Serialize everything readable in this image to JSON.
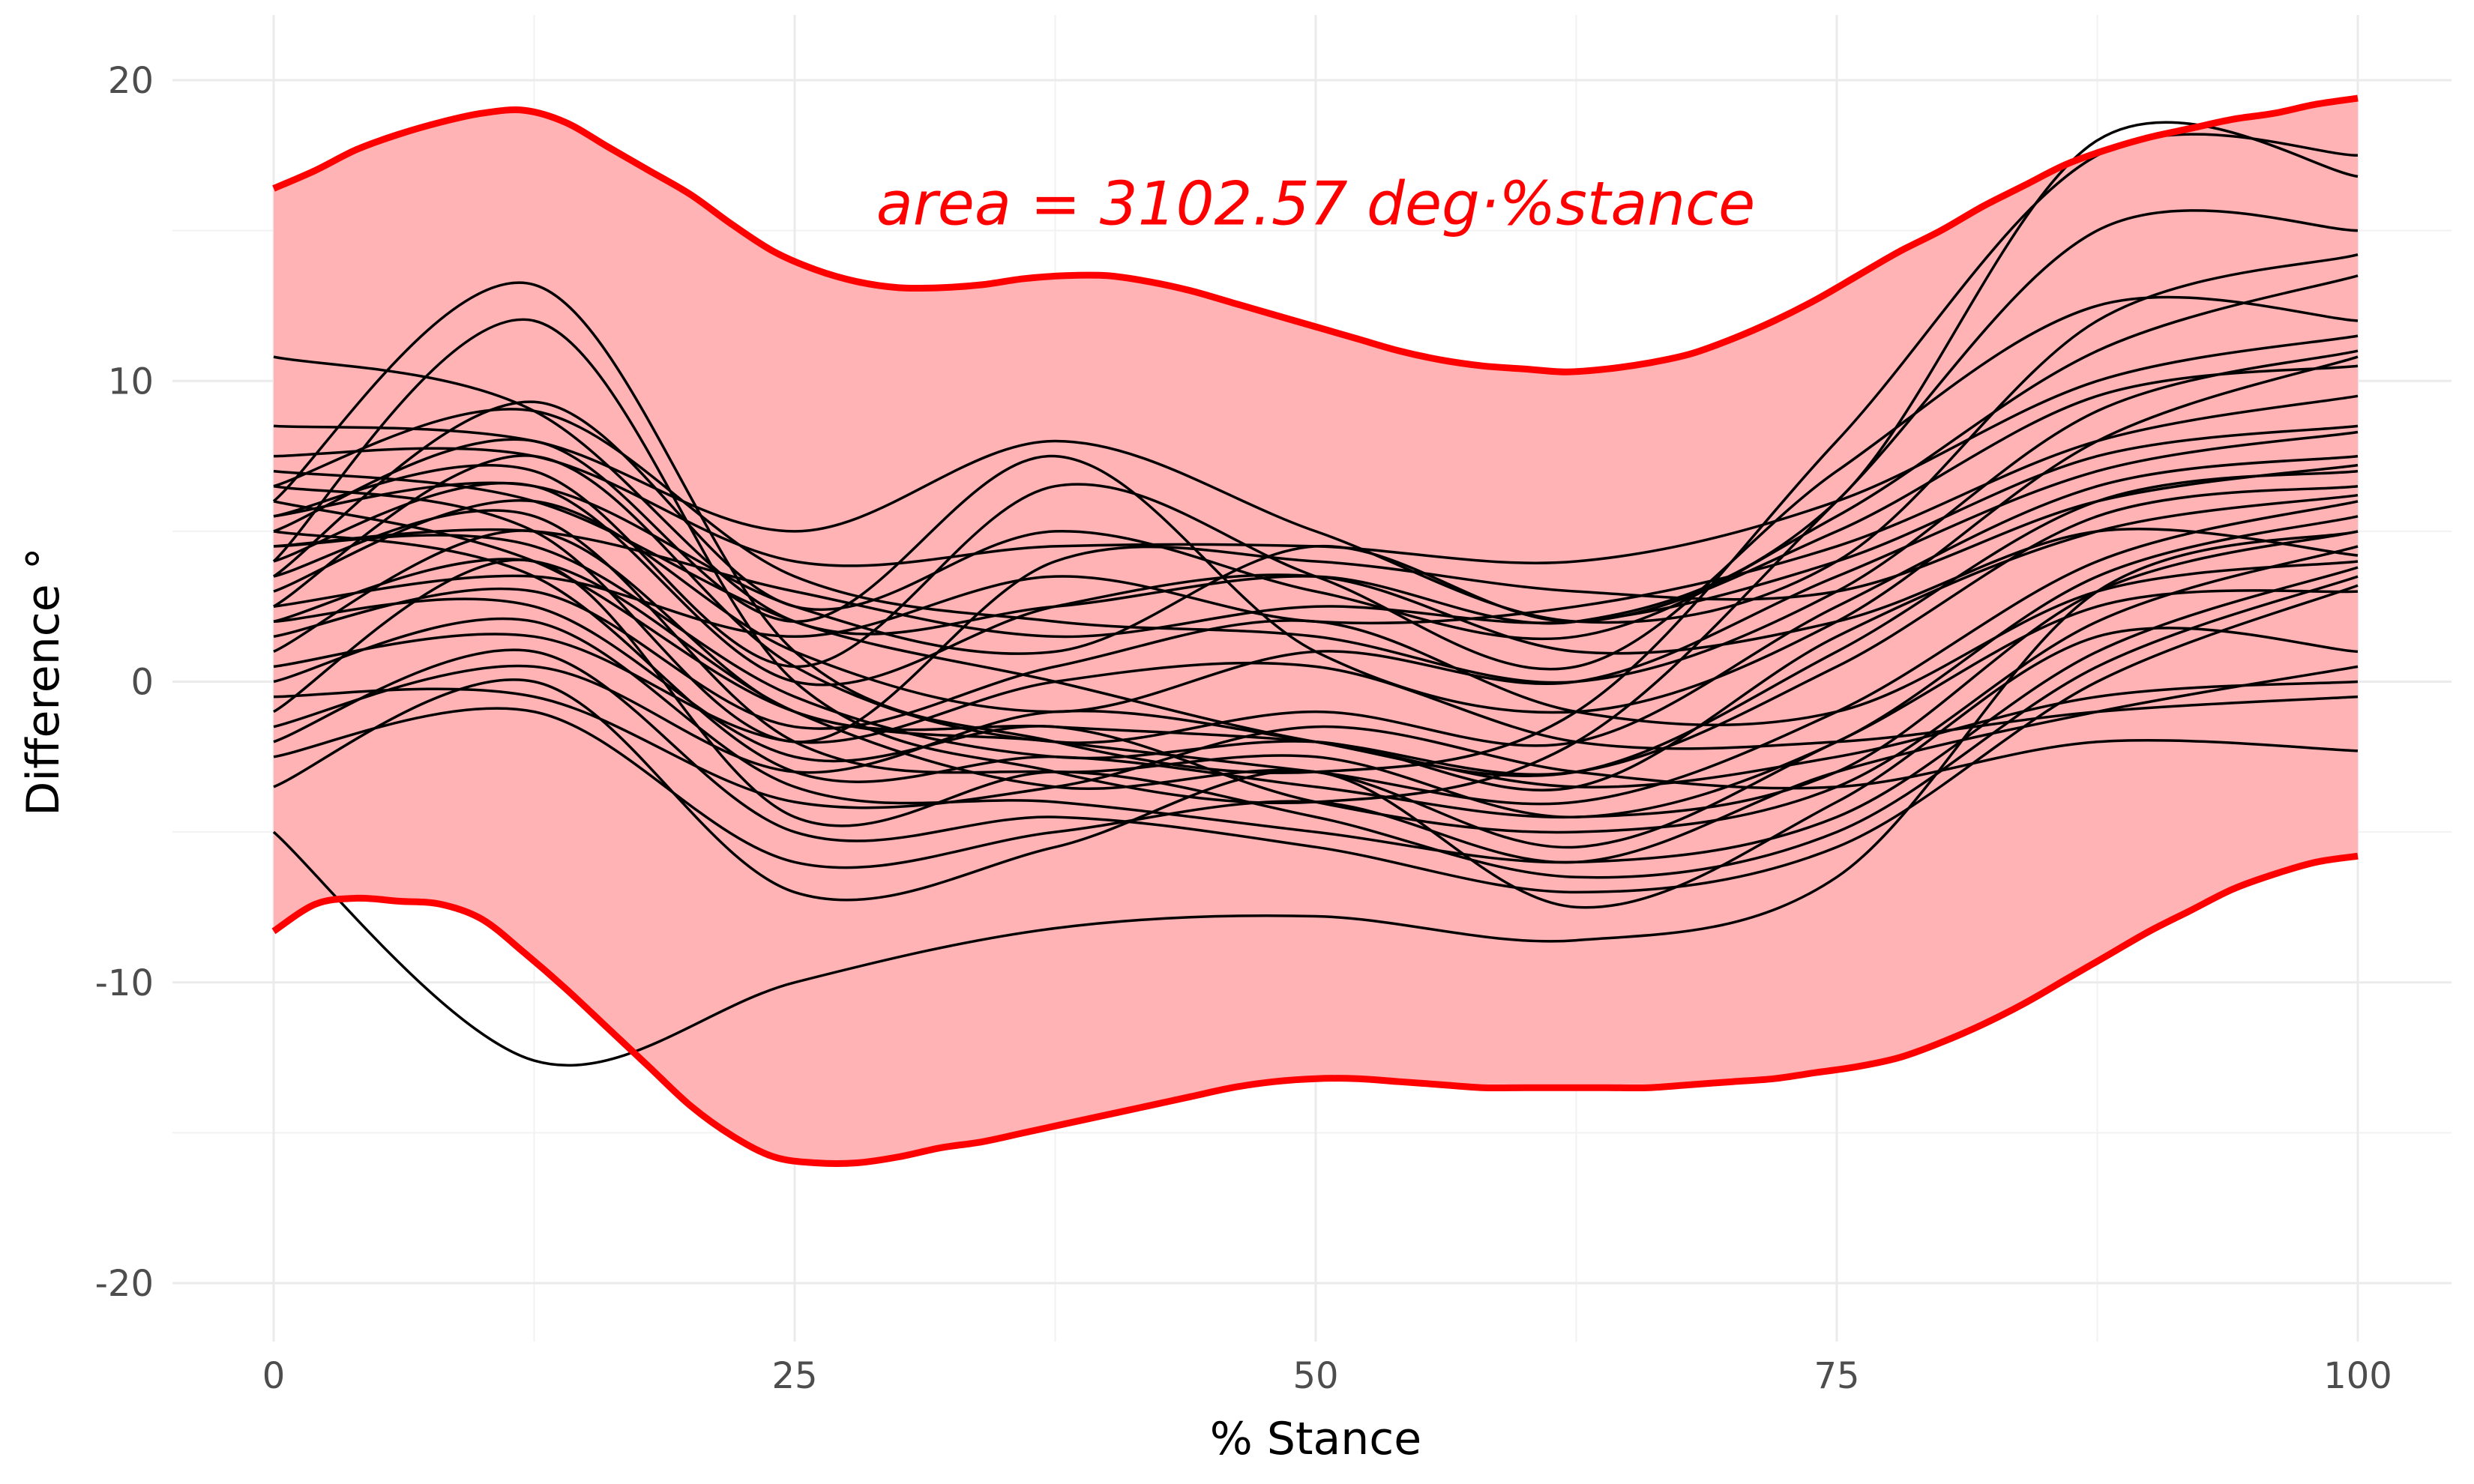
{
  "chart_data": {
    "type": "line",
    "title": "",
    "xlabel": "% Stance",
    "ylabel": "Difference °",
    "xlim": [
      -5,
      102
    ],
    "ylim": [
      -22,
      22
    ],
    "x_ticks": [
      0,
      25,
      50,
      75,
      100
    ],
    "x_tick_labels": [
      "0",
      "25",
      "50",
      "75",
      "100"
    ],
    "y_ticks": [
      -20,
      -10,
      0,
      10,
      20
    ],
    "y_tick_labels": [
      "-20",
      "-10",
      "0",
      "10",
      "20"
    ],
    "grid": true,
    "legend": "none",
    "annotation": {
      "text": "area = 3102.57 deg·%stance",
      "x": 50,
      "y": 15.9,
      "color": "#ff0000"
    },
    "band": {
      "fill_color": "#ffb3b5",
      "line_color": "#ff0000",
      "x": [
        0,
        2,
        4,
        6,
        8,
        10,
        12,
        14,
        16,
        18,
        20,
        22,
        24,
        26,
        28,
        30,
        32,
        34,
        36,
        38,
        40,
        42,
        44,
        46,
        48,
        50,
        52,
        54,
        56,
        58,
        60,
        62,
        64,
        66,
        68,
        70,
        72,
        74,
        76,
        78,
        80,
        82,
        84,
        86,
        88,
        90,
        92,
        94,
        96,
        98,
        100
      ],
      "upper": [
        16.4,
        17.0,
        17.7,
        18.2,
        18.6,
        18.9,
        19.0,
        18.6,
        17.8,
        17.0,
        16.2,
        15.2,
        14.3,
        13.7,
        13.3,
        13.1,
        13.1,
        13.2,
        13.4,
        13.5,
        13.5,
        13.3,
        13.0,
        12.6,
        12.2,
        11.8,
        11.4,
        11.0,
        10.7,
        10.5,
        10.4,
        10.3,
        10.4,
        10.6,
        10.9,
        11.4,
        12.0,
        12.7,
        13.5,
        14.3,
        15.0,
        15.8,
        16.5,
        17.2,
        17.7,
        18.1,
        18.4,
        18.7,
        18.9,
        19.2,
        19.4
      ],
      "lower": [
        -8.3,
        -7.4,
        -7.2,
        -7.3,
        -7.4,
        -7.9,
        -9.0,
        -10.2,
        -11.5,
        -12.8,
        -14.1,
        -15.1,
        -15.8,
        -16.0,
        -16.0,
        -15.8,
        -15.5,
        -15.3,
        -15.0,
        -14.7,
        -14.4,
        -14.1,
        -13.8,
        -13.5,
        -13.3,
        -13.2,
        -13.2,
        -13.3,
        -13.4,
        -13.5,
        -13.5,
        -13.5,
        -13.5,
        -13.5,
        -13.4,
        -13.3,
        -13.2,
        -13.0,
        -12.8,
        -12.5,
        -12.0,
        -11.4,
        -10.7,
        -9.9,
        -9.1,
        -8.3,
        -7.6,
        -6.9,
        -6.4,
        -6.0,
        -5.8
      ]
    },
    "series_x": [
      0,
      12.5,
      25,
      37.5,
      50,
      62.5,
      75,
      87.5,
      100
    ],
    "series": [
      {
        "values": [
          -5.0,
          -12.6,
          -10.0,
          -8.2,
          -7.8,
          -8.6,
          -6.5,
          3.0,
          5.0
        ]
      },
      {
        "values": [
          10.8,
          9.0,
          2.0,
          2.5,
          3.5,
          2.0,
          6.0,
          18.0,
          16.8
        ]
      },
      {
        "values": [
          6.0,
          13.2,
          1.0,
          -2.0,
          -3.0,
          -1.0,
          8.0,
          17.5,
          17.5
        ]
      },
      {
        "values": [
          4.0,
          12.0,
          0.0,
          -3.0,
          -4.0,
          -2.0,
          6.0,
          15.0,
          15.0
        ]
      },
      {
        "values": [
          8.5,
          8.0,
          5.0,
          8.0,
          5.0,
          2.0,
          4.0,
          12.0,
          14.2
        ]
      },
      {
        "values": [
          7.5,
          7.5,
          4.0,
          4.5,
          4.5,
          4.0,
          6.0,
          10.0,
          11.5
        ]
      },
      {
        "values": [
          6.5,
          9.0,
          3.5,
          2.0,
          1.5,
          0.0,
          3.0,
          9.0,
          11.0
        ]
      },
      {
        "values": [
          5.5,
          6.5,
          2.5,
          1.0,
          4.5,
          2.0,
          5.0,
          9.5,
          10.5
        ]
      },
      {
        "values": [
          5.0,
          8.0,
          2.0,
          7.5,
          1.0,
          -1.0,
          2.0,
          8.0,
          10.8
        ]
      },
      {
        "values": [
          4.5,
          5.0,
          3.0,
          1.5,
          2.5,
          2.0,
          4.0,
          7.5,
          8.5
        ]
      },
      {
        "values": [
          3.0,
          6.0,
          1.0,
          -1.0,
          1.0,
          0.0,
          3.5,
          7.0,
          8.3
        ]
      },
      {
        "values": [
          2.5,
          7.5,
          0.5,
          -2.0,
          -1.0,
          -2.0,
          2.5,
          6.5,
          7.5
        ]
      },
      {
        "values": [
          7.0,
          6.0,
          2.0,
          0.0,
          -2.0,
          -3.0,
          1.0,
          6.0,
          7.0
        ]
      },
      {
        "values": [
          1.0,
          5.0,
          -1.0,
          -1.5,
          -2.0,
          -3.0,
          0.5,
          5.5,
          6.5
        ]
      },
      {
        "values": [
          6.0,
          4.0,
          -1.0,
          -2.0,
          -3.0,
          -4.0,
          -1.0,
          4.0,
          6.0
        ]
      },
      {
        "values": [
          3.5,
          5.5,
          -2.0,
          -3.0,
          -2.5,
          -4.5,
          -2.0,
          3.5,
          5.5
        ]
      },
      {
        "values": [
          5.0,
          3.5,
          -3.0,
          -2.5,
          -3.5,
          -4.5,
          -3.0,
          3.0,
          5.0
        ]
      },
      {
        "values": [
          2.0,
          2.5,
          -2.5,
          -1.5,
          -4.0,
          -5.0,
          -3.5,
          2.0,
          4.5
        ]
      },
      {
        "values": [
          4.0,
          6.5,
          0.0,
          2.5,
          3.5,
          1.0,
          2.0,
          5.0,
          4.2
        ]
      },
      {
        "values": [
          1.5,
          3.0,
          -1.5,
          0.5,
          2.0,
          -1.0,
          -1.0,
          3.0,
          4.0
        ]
      },
      {
        "values": [
          0.0,
          2.0,
          -3.5,
          -4.0,
          -5.0,
          -6.0,
          -4.5,
          1.0,
          3.8
        ]
      },
      {
        "values": [
          -1.0,
          4.0,
          -4.5,
          -3.0,
          -4.5,
          -6.5,
          -5.0,
          0.5,
          3.5
        ]
      },
      {
        "values": [
          -2.0,
          1.0,
          -5.0,
          -4.5,
          -5.5,
          -7.0,
          -5.5,
          0.0,
          3.2
        ]
      },
      {
        "values": [
          -3.5,
          0.0,
          -7.0,
          -5.5,
          -3.0,
          -7.5,
          -4.0,
          1.5,
          1.0
        ]
      },
      {
        "values": [
          -2.5,
          -1.0,
          -6.0,
          -5.0,
          -4.0,
          -6.0,
          -3.0,
          -1.0,
          0.5
        ]
      },
      {
        "values": [
          -1.5,
          0.5,
          -3.0,
          -1.0,
          -2.0,
          -3.5,
          -2.5,
          -0.5,
          0.0
        ]
      },
      {
        "values": [
          0.5,
          1.5,
          -2.0,
          0.0,
          0.5,
          -2.0,
          -2.0,
          -1.0,
          -0.5
        ]
      },
      {
        "values": [
          -0.5,
          -0.5,
          -4.0,
          -3.5,
          -1.5,
          -3.0,
          -3.5,
          -2.0,
          -2.3
        ]
      },
      {
        "values": [
          2.5,
          3.5,
          1.5,
          3.5,
          2.0,
          2.5,
          4.5,
          8.0,
          9.5
        ]
      },
      {
        "values": [
          3.5,
          9.3,
          2.5,
          5.0,
          3.0,
          1.5,
          5.5,
          11.0,
          13.5
        ]
      },
      {
        "values": [
          5.5,
          7.0,
          0.5,
          6.5,
          3.5,
          0.5,
          7.0,
          12.5,
          12.0
        ]
      },
      {
        "values": [
          6.5,
          5.0,
          -2.0,
          4.0,
          4.0,
          3.0,
          3.0,
          6.0,
          7.2
        ]
      },
      {
        "values": [
          4.5,
          4.5,
          -0.5,
          -2.5,
          -2.0,
          -3.5,
          1.5,
          5.0,
          6.2
        ]
      },
      {
        "values": [
          2.0,
          4.0,
          -1.0,
          -3.5,
          -3.0,
          -5.5,
          -2.0,
          2.5,
          3.0
        ]
      }
    ]
  }
}
